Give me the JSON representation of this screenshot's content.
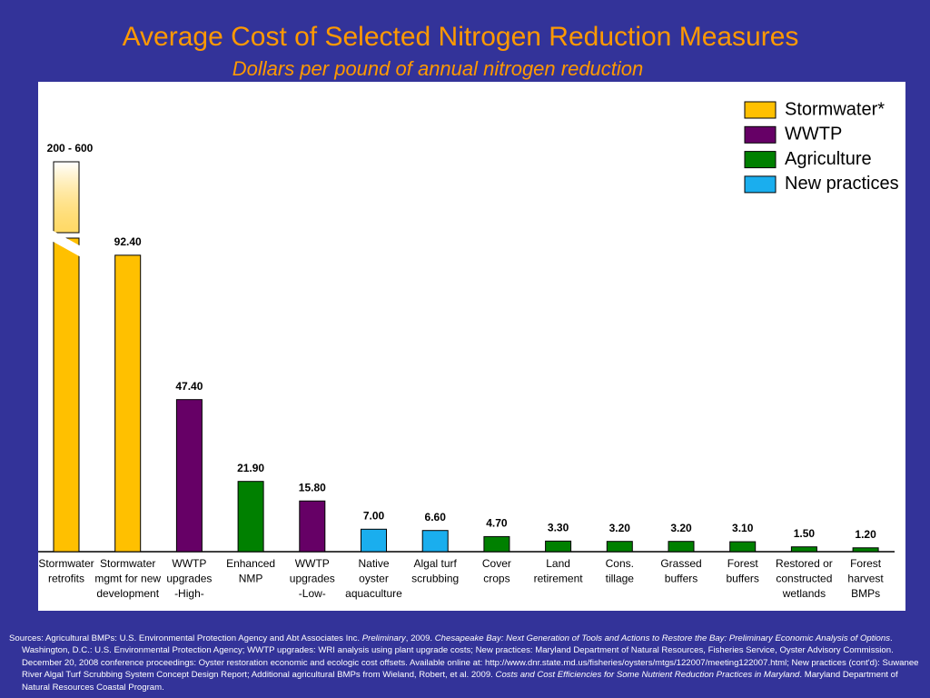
{
  "chart_data": {
    "type": "bar",
    "title": "Average Cost of Selected Nitrogen Reduction Measures",
    "subtitle": "Dollars per pound of annual nitrogen reduction",
    "legend": [
      {
        "name": "Stormwater*",
        "color": "#ffc000"
      },
      {
        "name": "WWTP",
        "color": "#660066"
      },
      {
        "name": "Agriculture",
        "color": "#008000"
      },
      {
        "name": "New practices",
        "color": "#1aaeee"
      }
    ],
    "categories": [
      [
        "Stormwater",
        "retrofits"
      ],
      [
        "Stormwater",
        "mgmt for new",
        "development"
      ],
      [
        "WWTP",
        "upgrades",
        "-High-"
      ],
      [
        "Enhanced",
        "NMP"
      ],
      [
        "WWTP",
        "upgrades",
        "-Low-"
      ],
      [
        "Native",
        "oyster",
        "aquaculture"
      ],
      [
        "Algal turf",
        "scrubbing"
      ],
      [
        "Cover",
        "crops"
      ],
      [
        "Land",
        "retirement"
      ],
      [
        "Cons.",
        "tillage"
      ],
      [
        "Grassed",
        "buffers"
      ],
      [
        "Forest",
        "buffers"
      ],
      [
        "Restored or",
        "constructed",
        "wetlands"
      ],
      [
        "Forest",
        "harvest",
        "BMPs"
      ]
    ],
    "groups": [
      0,
      0,
      1,
      2,
      1,
      3,
      3,
      2,
      2,
      2,
      2,
      2,
      2,
      2
    ],
    "values": [
      [
        200,
        600
      ],
      92.4,
      47.4,
      21.9,
      15.8,
      7.0,
      6.6,
      4.7,
      3.3,
      3.2,
      3.2,
      3.1,
      1.5,
      1.2
    ],
    "value_labels": [
      "200 - 600",
      "92.40",
      "47.40",
      "21.90",
      "15.80",
      "7.00",
      "6.60",
      "4.70",
      "3.30",
      "3.20",
      "3.20",
      "3.10",
      "1.50",
      "1.20"
    ],
    "footnote": [
      {
        "text": "Sources: Agricultural BMPs: U.S. Environmental Protection Agency and Abt Associates Inc. ",
        "italic": false
      },
      {
        "text": "Preliminary",
        "italic": true
      },
      {
        "text": ", 2009. ",
        "italic": false
      },
      {
        "text": "Chesapeake Bay: Next Generation of Tools and Actions to Restore the Bay: Preliminary Economic Analysis of Options",
        "italic": true
      },
      {
        "text": ". Washington, D.C.: U.S. Environmental Protection Agency; WWTP upgrades: WRI analysis using plant upgrade costs; New practices: Maryland Department of Natural Resources, Fisheries Service, Oyster Advisory Commission. December 20, 2008 conference proceedings: Oyster restoration economic and ecologic cost offsets. Available online at: http://www.dnr.state.md.us/fisheries/oysters/mtgs/122007/meeting122007.html; New practices (cont'd): Suwanee River Algal Turf Scrubbing System Concept Design Report; Additional agricultural BMPs from Wieland, Robert, et al. 2009. ",
        "italic": false
      },
      {
        "text": "Costs and Cost Efficiencies for Some Nutrient Reduction Practices in Maryland",
        "italic": true
      },
      {
        "text": ". Maryland Department of Natural Resources Coastal Program.",
        "italic": false
      }
    ]
  }
}
